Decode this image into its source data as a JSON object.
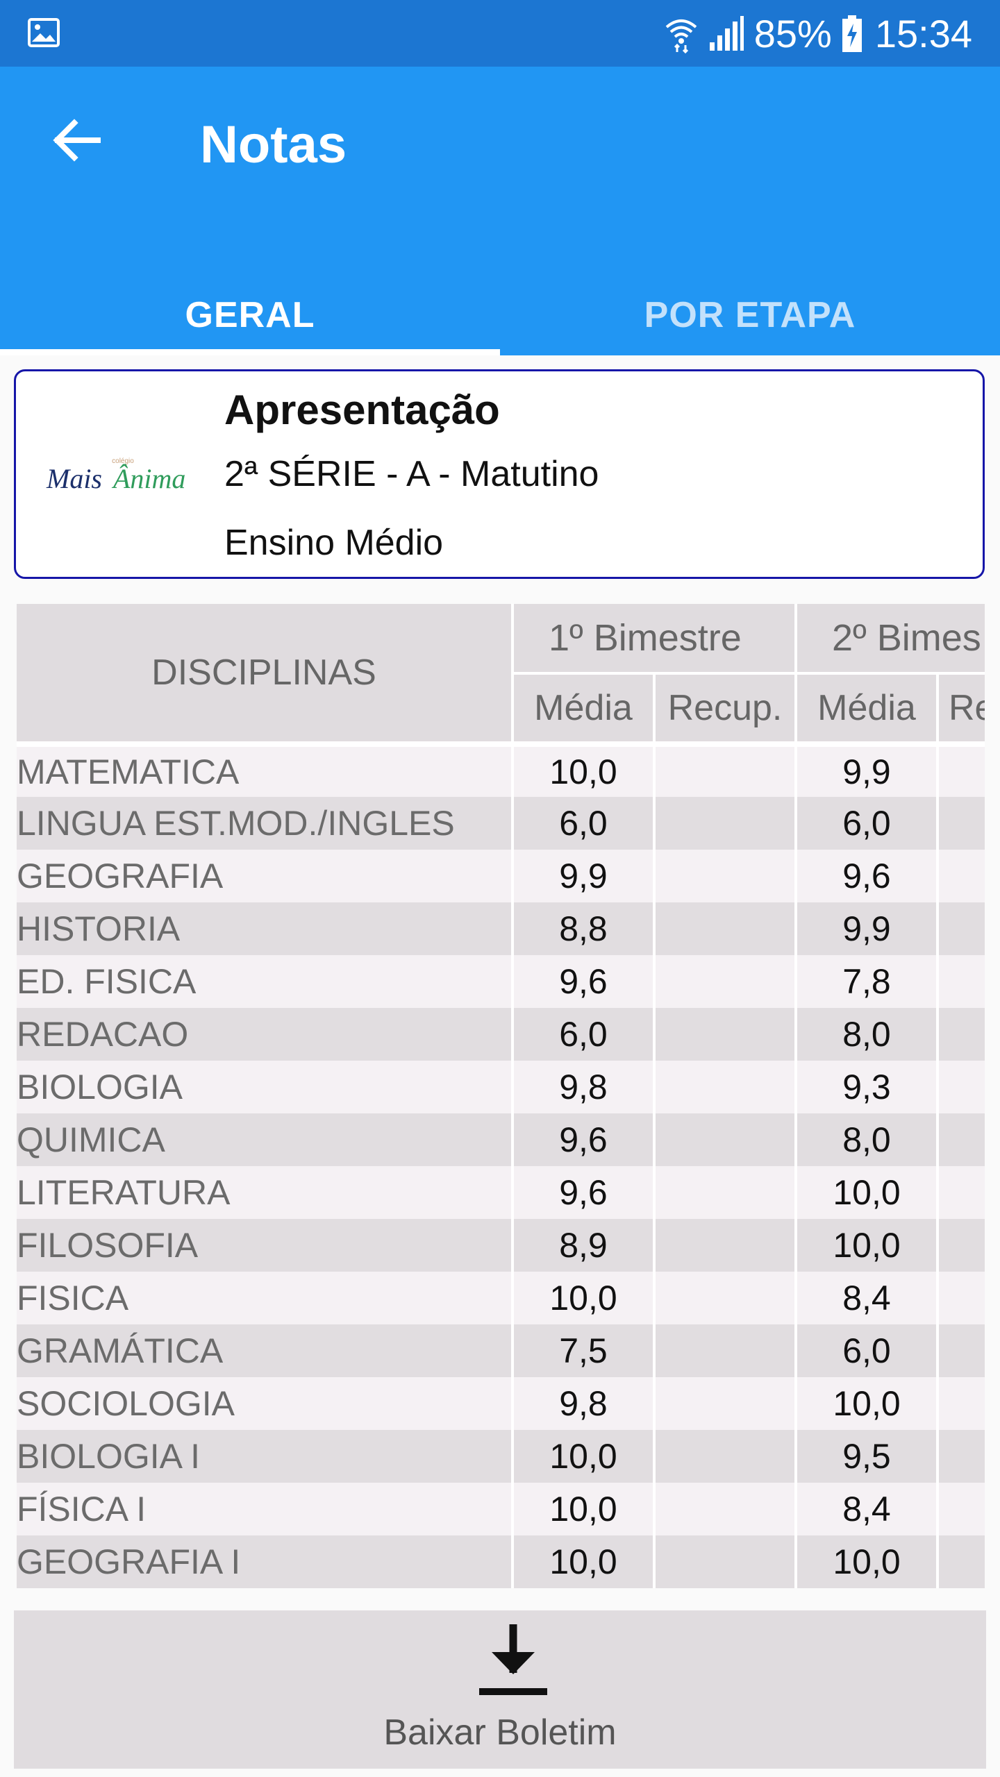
{
  "status": {
    "battery_pct": "85%",
    "time": "15:34",
    "icons": [
      "image-icon",
      "wifi-icon",
      "signal-icon",
      "battery-charging-icon"
    ]
  },
  "appbar": {
    "title": "Notas",
    "back_icon": "arrow-left-icon",
    "background": "#2196f3",
    "status_background": "#1c76d2"
  },
  "tabs": [
    {
      "label": "GERAL",
      "active": true
    },
    {
      "label": "POR ETAPA",
      "active": false
    }
  ],
  "card": {
    "logo_text": "Mais Ânima",
    "title": "Apresentação",
    "line1": "2ª SÉRIE - A - Matutino",
    "line2": "Ensino Médio"
  },
  "table": {
    "discipline_header": "DISCIPLINAS",
    "periods": [
      "1º Bimestre",
      "2º Bimes"
    ],
    "sub_headers": [
      "Média",
      "Recup.",
      "Média",
      "Re"
    ],
    "rows": [
      {
        "name": "MATEMATICA",
        "p1": "10,0",
        "r1": "",
        "p2": "9,9",
        "r2": ""
      },
      {
        "name": "LINGUA EST.MOD./INGLES",
        "p1": "6,0",
        "r1": "",
        "p2": "6,0",
        "r2": ""
      },
      {
        "name": "GEOGRAFIA",
        "p1": "9,9",
        "r1": "",
        "p2": "9,6",
        "r2": ""
      },
      {
        "name": "HISTORIA",
        "p1": "8,8",
        "r1": "",
        "p2": "9,9",
        "r2": ""
      },
      {
        "name": "ED. FISICA",
        "p1": "9,6",
        "r1": "",
        "p2": "7,8",
        "r2": ""
      },
      {
        "name": "REDACAO",
        "p1": "6,0",
        "r1": "",
        "p2": "8,0",
        "r2": ""
      },
      {
        "name": "BIOLOGIA",
        "p1": "9,8",
        "r1": "",
        "p2": "9,3",
        "r2": ""
      },
      {
        "name": "QUIMICA",
        "p1": "9,6",
        "r1": "",
        "p2": "8,0",
        "r2": ""
      },
      {
        "name": "LITERATURA",
        "p1": "9,6",
        "r1": "",
        "p2": "10,0",
        "r2": ""
      },
      {
        "name": "FILOSOFIA",
        "p1": "8,9",
        "r1": "",
        "p2": "10,0",
        "r2": ""
      },
      {
        "name": "FISICA",
        "p1": "10,0",
        "r1": "",
        "p2": "8,4",
        "r2": ""
      },
      {
        "name": "GRAMÁTICA",
        "p1": "7,5",
        "r1": "",
        "p2": "6,0",
        "r2": ""
      },
      {
        "name": "SOCIOLOGIA",
        "p1": "9,8",
        "r1": "",
        "p2": "10,0",
        "r2": ""
      },
      {
        "name": "BIOLOGIA I",
        "p1": "10,0",
        "r1": "",
        "p2": "9,5",
        "r2": ""
      },
      {
        "name": "FÍSICA I",
        "p1": "10,0",
        "r1": "",
        "p2": "8,4",
        "r2": ""
      },
      {
        "name": "GEOGRAFIA I",
        "p1": "10,0",
        "r1": "",
        "p2": "10,0",
        "r2": ""
      }
    ]
  },
  "download": {
    "label": "Baixar Boletim",
    "icon": "download-icon"
  }
}
